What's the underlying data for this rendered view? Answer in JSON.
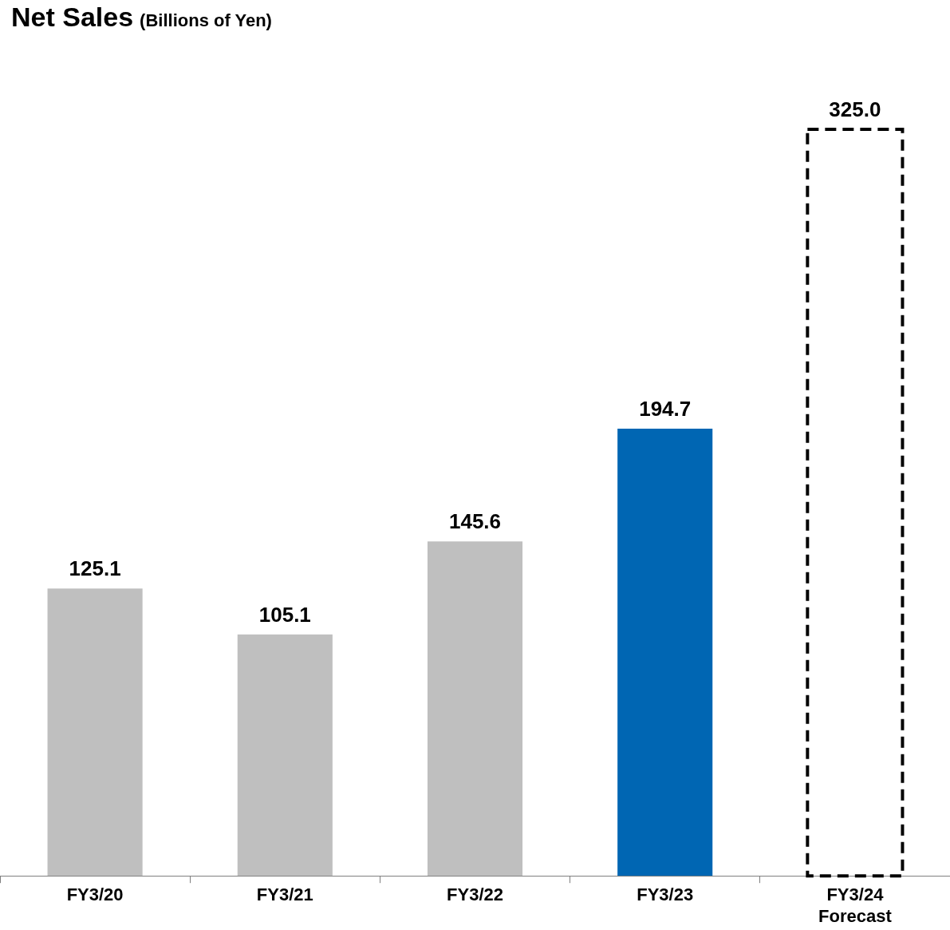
{
  "chart_data": {
    "type": "bar",
    "title": "Net Sales",
    "subtitle": "(Billions of Yen)",
    "categories": [
      "FY3/20",
      "FY3/21",
      "FY3/22",
      "FY3/23",
      "FY3/24 Forecast"
    ],
    "series": [
      {
        "values": [
          125.1,
          105.1,
          145.6,
          194.7,
          null
        ],
        "value_labels": [
          "125.1",
          "105.1",
          "145.6",
          "194.7",
          null
        ],
        "colors": [
          "#bfbfbf",
          "#bfbfbf",
          "#bfbfbf",
          "#0066b3",
          null
        ]
      },
      {
        "line_style": "dashed",
        "color": "#000000",
        "values": [
          null,
          null,
          null,
          null,
          325.0
        ],
        "value_labels": [
          null,
          null,
          null,
          null,
          "325.0"
        ]
      }
    ],
    "grid": false,
    "legend": false
  }
}
